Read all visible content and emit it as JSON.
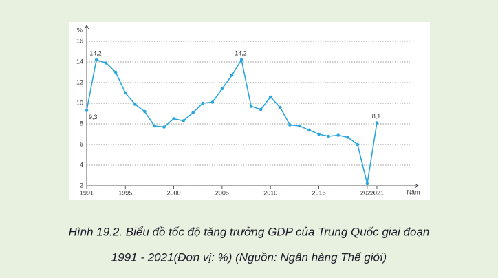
{
  "chart_data": {
    "type": "line",
    "y_axis_label": "%",
    "x_axis_label": "Năm",
    "caption": [
      "Hình 19.2. Biểu đồ tốc độ tăng trưởng GDP của Trung Quốc giai đoạn",
      "1991 - 2021(Đơn vị: %) (Nguồn: Ngân hàng Thế giới)"
    ],
    "x": [
      1991,
      1992,
      1993,
      1994,
      1995,
      1996,
      1997,
      1998,
      1999,
      2000,
      2001,
      2002,
      2003,
      2004,
      2005,
      2006,
      2007,
      2008,
      2009,
      2010,
      2011,
      2012,
      2013,
      2014,
      2015,
      2016,
      2017,
      2018,
      2019,
      2020,
      2021
    ],
    "series": [
      {
        "color": "#2aa6de",
        "values": [
          9.3,
          14.2,
          13.9,
          13.0,
          11.0,
          9.9,
          9.2,
          7.8,
          7.7,
          8.5,
          8.3,
          9.1,
          10.0,
          10.1,
          11.4,
          12.7,
          14.2,
          9.7,
          9.4,
          10.6,
          9.6,
          7.9,
          7.8,
          7.4,
          7.0,
          6.8,
          6.9,
          6.7,
          6.0,
          2.2,
          8.1
        ],
        "value_labels": [
          "9,3",
          "14,2",
          null,
          null,
          null,
          null,
          null,
          null,
          null,
          null,
          null,
          null,
          null,
          null,
          null,
          null,
          "14,2",
          null,
          null,
          null,
          null,
          null,
          null,
          null,
          null,
          null,
          null,
          null,
          null,
          null,
          "8,1"
        ]
      }
    ],
    "xlim": [
      1991,
      2024.7
    ],
    "xticks": [
      1991,
      1995,
      2000,
      2005,
      2010,
      2015,
      2020,
      2021
    ],
    "ylim": [
      2,
      17
    ],
    "yticks": [
      2,
      4,
      6,
      8,
      10,
      12,
      14,
      16
    ],
    "grid": true
  }
}
